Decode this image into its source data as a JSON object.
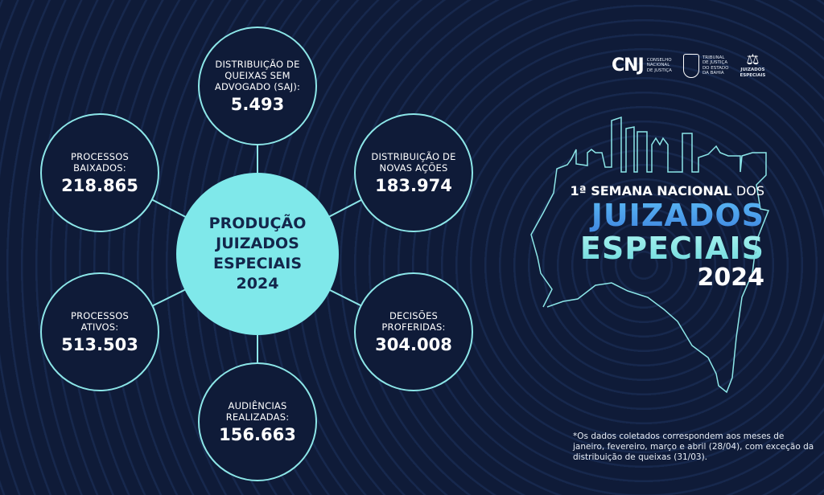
{
  "center": {
    "label": "PRODUÇÃO\nJUIZADOS\nESPECIAIS\n2024"
  },
  "nodes": [
    {
      "label": "DISTRIBUIÇÃO DE QUEIXAS SEM ADVOGADO (SAJ):",
      "value": "5.493"
    },
    {
      "label": "DISTRIBUIÇÃO DE NOVAS AÇÕES",
      "value": "183.974"
    },
    {
      "label": "DECISÕES PROFERIDAS:",
      "value": "304.008"
    },
    {
      "label": "AUDIÊNCIAS REALIZADAS:",
      "value": "156.663"
    },
    {
      "label": "PROCESSOS ATIVOS:",
      "value": "513.503"
    },
    {
      "label": "PROCESSOS BAIXADOS:",
      "value": "218.865"
    }
  ],
  "title": {
    "line1": "1ª SEMANA NACIONAL",
    "line1b": "DOS",
    "line2": "JUIZADOS",
    "line3": "ESPECIAIS",
    "line4": "2024"
  },
  "logos": {
    "cnj": "CNJ",
    "cnj_text": "CONSELHO\nNACIONAL\nDE JUSTIÇA",
    "tj_text": "TRIBUNAL\nDE JUSTIÇA\nDO ESTADO\nDA BAHIA",
    "je_text": "JUIZADOS\nESPECIAIS"
  },
  "footnote": "*Os dados coletados correspondem aos meses de janeiro, fevereiro, março e abril (28/04), com exceção da distribuição de queixas (31/03).",
  "colors": {
    "background": "#0f1b38",
    "accent": "#7fe8ea",
    "blue": "#4a9ae8"
  }
}
